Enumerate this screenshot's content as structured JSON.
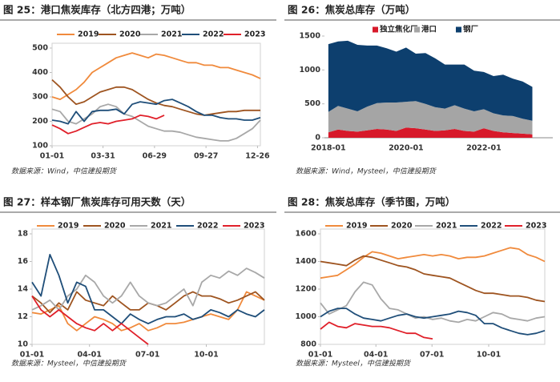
{
  "chart_data": [
    {
      "type": "line",
      "title": "图 25：港口焦炭库存（北方四港；万吨）",
      "source": "数据来源：Wind，中信建投期货",
      "x": [
        0,
        14,
        28,
        42,
        56,
        70,
        84,
        98,
        112,
        126,
        140,
        154,
        168,
        182,
        196,
        210,
        224,
        238,
        252,
        266,
        280,
        294,
        308,
        322,
        336,
        350,
        364
      ],
      "xlim": [
        0,
        364
      ],
      "xticks": [
        {
          "value": 0,
          "label": "01-01"
        },
        {
          "value": 89,
          "label": "03-31"
        },
        {
          "value": 179,
          "label": "06-29"
        },
        {
          "value": 269,
          "label": "09-27"
        },
        {
          "value": 359,
          "label": "12-26"
        }
      ],
      "ylim": [
        100,
        500
      ],
      "yticks": [
        100,
        200,
        300,
        400,
        500
      ],
      "series": [
        {
          "name": "2019",
          "color": "#f08a3c",
          "values": [
            300,
            290,
            310,
            330,
            360,
            400,
            420,
            440,
            460,
            470,
            480,
            470,
            460,
            475,
            470,
            460,
            450,
            440,
            440,
            430,
            430,
            420,
            420,
            410,
            400,
            390,
            375
          ]
        },
        {
          "name": "2020",
          "color": "#9e5420",
          "values": [
            370,
            340,
            300,
            270,
            280,
            300,
            320,
            330,
            340,
            340,
            330,
            310,
            290,
            275,
            265,
            260,
            250,
            240,
            230,
            225,
            230,
            235,
            240,
            240,
            245,
            245,
            245
          ]
        },
        {
          "name": "2021",
          "color": "#a8a8a8",
          "values": [
            250,
            240,
            200,
            190,
            210,
            230,
            260,
            270,
            260,
            230,
            220,
            200,
            180,
            170,
            160,
            160,
            155,
            145,
            135,
            130,
            125,
            120,
            120,
            130,
            150,
            170,
            205
          ]
        },
        {
          "name": "2022",
          "color": "#1f4e79",
          "values": [
            205,
            200,
            190,
            240,
            200,
            240,
            245,
            245,
            250,
            230,
            270,
            280,
            275,
            270,
            285,
            290,
            275,
            260,
            240,
            225,
            225,
            215,
            210,
            210,
            205,
            205,
            215
          ]
        },
        {
          "name": "2023",
          "color": "#e0202a",
          "values": [
            185,
            170,
            150,
            160,
            175,
            190,
            195,
            190,
            200,
            205,
            210,
            225,
            220,
            210,
            225,
            null,
            null,
            null,
            null,
            null,
            null,
            null,
            null,
            null,
            null,
            null,
            null
          ]
        }
      ]
    },
    {
      "type": "area",
      "stacked": true,
      "title": "图 26：焦炭总库存（万吨）",
      "source": "数据来源：Wind，Mysteel，中信建投期货",
      "categories": [
        "2018-01",
        null,
        null,
        null,
        null,
        null,
        null,
        null,
        "2020-01",
        null,
        null,
        null,
        null,
        null,
        null,
        null,
        "2022-01",
        null,
        null,
        null,
        null,
        null
      ],
      "ylim": [
        0,
        1500
      ],
      "yticks": [
        0,
        500,
        1000,
        1500
      ],
      "series": [
        {
          "name": "独立焦化厂",
          "color": "#d7192a",
          "values": [
            80,
            120,
            100,
            90,
            110,
            130,
            120,
            100,
            150,
            140,
            120,
            100,
            110,
            130,
            100,
            90,
            140,
            100,
            80,
            70,
            60,
            50
          ]
        },
        {
          "name": "港口",
          "color": "#a5a5a5",
          "values": [
            300,
            350,
            330,
            300,
            350,
            380,
            400,
            420,
            380,
            400,
            380,
            350,
            320,
            350,
            330,
            300,
            280,
            260,
            250,
            250,
            220,
            200
          ]
        },
        {
          "name": "钢厂",
          "color": "#0d3f6e",
          "values": [
            1000,
            950,
            1000,
            980,
            900,
            850,
            800,
            750,
            800,
            700,
            750,
            720,
            650,
            600,
            650,
            600,
            550,
            550,
            600,
            550,
            550,
            500
          ]
        }
      ]
    },
    {
      "type": "line",
      "title": "图 27：样本钢厂焦炭库存可用天数（天）",
      "source": "数据来源：Mysteel，中信建投期货",
      "x": [
        0,
        14,
        28,
        42,
        56,
        70,
        84,
        98,
        112,
        126,
        140,
        154,
        168,
        182,
        196,
        210,
        224,
        238,
        252,
        266,
        280,
        294,
        308,
        322,
        336,
        350,
        364
      ],
      "xlim": [
        0,
        364
      ],
      "xticks": [
        {
          "value": 0,
          "label": "01-01"
        },
        {
          "value": 90,
          "label": "04-01"
        },
        {
          "value": 181,
          "label": "07-01"
        },
        {
          "value": 273,
          "label": "10-01"
        }
      ],
      "ylim": [
        10,
        18
      ],
      "yticks": [
        10,
        12,
        14,
        16,
        18
      ],
      "series": [
        {
          "name": "2019",
          "color": "#f08a3c",
          "values": [
            12.3,
            12.2,
            12.5,
            12.8,
            11.5,
            11.0,
            11.5,
            12.0,
            11.8,
            11.5,
            11.0,
            11.2,
            11.5,
            11.0,
            11.2,
            11.5,
            11.5,
            11.6,
            11.8,
            12.0,
            12.2,
            12.0,
            11.8,
            12.5,
            13.8,
            13.5,
            13.2
          ]
        },
        {
          "name": "2020",
          "color": "#9e5420",
          "values": [
            13.5,
            13.0,
            12.3,
            13.0,
            12.5,
            13.8,
            13.2,
            13.0,
            12.8,
            13.5,
            13.0,
            12.5,
            12.5,
            13.0,
            12.8,
            12.5,
            13.0,
            13.5,
            13.8,
            13.5,
            13.5,
            13.3,
            13.0,
            13.2,
            13.5,
            13.8,
            13.2
          ]
        },
        {
          "name": "2021",
          "color": "#a8a8a8",
          "values": [
            12.5,
            12.8,
            13.2,
            12.5,
            13.5,
            14.0,
            15.0,
            14.5,
            13.5,
            13.0,
            13.5,
            14.5,
            13.5,
            13.0,
            12.8,
            13.0,
            13.5,
            14.0,
            12.8,
            14.5,
            15.0,
            14.8,
            15.3,
            15.0,
            15.5,
            15.2,
            14.8
          ]
        },
        {
          "name": "2022",
          "color": "#1f4e79",
          "values": [
            14.5,
            13.5,
            16.5,
            15.0,
            13.0,
            14.5,
            14.2,
            12.5,
            12.5,
            12.0,
            11.5,
            12.2,
            11.8,
            11.5,
            11.8,
            12.0,
            12.0,
            12.2,
            11.8,
            12.0,
            12.5,
            12.3,
            12.0,
            12.5,
            12.2,
            12.0,
            12.5
          ]
        },
        {
          "name": "2023",
          "color": "#e0202a",
          "values": [
            13.5,
            12.5,
            12.0,
            12.5,
            12.0,
            11.5,
            11.2,
            11.0,
            11.5,
            11.0,
            11.5,
            11.0,
            10.5,
            10.0,
            null,
            null,
            null,
            null,
            null,
            null,
            null,
            null,
            null,
            null,
            null,
            null,
            null
          ]
        }
      ]
    },
    {
      "type": "line",
      "title": "图 28：焦炭总库存（季节图，万吨）",
      "source": "数据来源：Mysteel，中信建投期货",
      "x": [
        0,
        14,
        28,
        42,
        56,
        70,
        84,
        98,
        112,
        126,
        140,
        154,
        168,
        182,
        196,
        210,
        224,
        238,
        252,
        266,
        280,
        294,
        308,
        322,
        336,
        350,
        364
      ],
      "xlim": [
        0,
        364
      ],
      "xticks": [
        {
          "value": 0,
          "label": "01-01"
        },
        {
          "value": 90,
          "label": "04-01"
        },
        {
          "value": 181,
          "label": "07-01"
        },
        {
          "value": 273,
          "label": "10-01"
        }
      ],
      "ylim": [
        800,
        1600
      ],
      "yticks": [
        800,
        1000,
        1200,
        1400,
        1600
      ],
      "series": [
        {
          "name": "2019",
          "color": "#f08a3c",
          "values": [
            1280,
            1290,
            1300,
            1340,
            1380,
            1430,
            1470,
            1460,
            1440,
            1420,
            1430,
            1440,
            1450,
            1440,
            1450,
            1440,
            1420,
            1430,
            1430,
            1440,
            1460,
            1480,
            1500,
            1490,
            1450,
            1430,
            1400
          ]
        },
        {
          "name": "2020",
          "color": "#9e5420",
          "values": [
            1400,
            1390,
            1380,
            1370,
            1410,
            1440,
            1430,
            1410,
            1390,
            1370,
            1360,
            1340,
            1310,
            1300,
            1290,
            1280,
            1250,
            1220,
            1190,
            1170,
            1170,
            1160,
            1150,
            1150,
            1140,
            1120,
            1110
          ]
        },
        {
          "name": "2021",
          "color": "#a8a8a8",
          "values": [
            1100,
            1020,
            1050,
            1080,
            1180,
            1250,
            1230,
            1130,
            1060,
            1050,
            1020,
            990,
            1000,
            980,
            990,
            970,
            960,
            980,
            970,
            1000,
            1030,
            1020,
            990,
            980,
            970,
            990,
            1000
          ]
        },
        {
          "name": "2022",
          "color": "#1f4e79",
          "values": [
            1000,
            1040,
            1060,
            1060,
            1020,
            990,
            980,
            970,
            990,
            1010,
            1020,
            1000,
            990,
            1000,
            1010,
            1020,
            1040,
            1030,
            1010,
            950,
            950,
            920,
            900,
            880,
            870,
            880,
            900
          ]
        },
        {
          "name": "2023",
          "color": "#e0202a",
          "values": [
            910,
            960,
            930,
            920,
            950,
            940,
            930,
            930,
            920,
            900,
            880,
            880,
            850,
            840,
            null,
            null,
            null,
            null,
            null,
            null,
            null,
            null,
            null,
            null,
            null,
            null,
            null
          ]
        }
      ]
    }
  ]
}
